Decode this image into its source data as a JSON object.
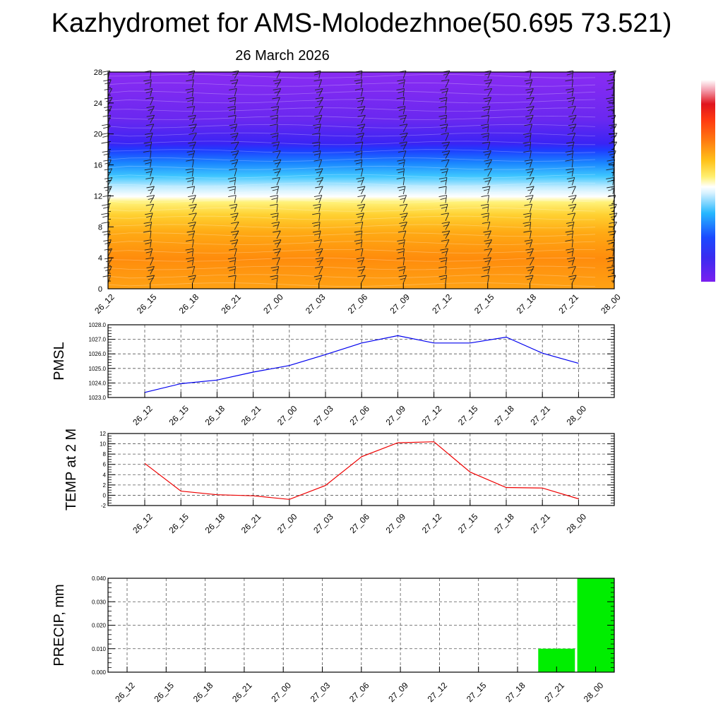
{
  "header": {
    "title": "Kazhydromet for AMS-Molodezhnoe(50.695 73.521)",
    "date": "26 March 2026"
  },
  "chart_data": [
    {
      "type": "heatmap",
      "name": "cross-section",
      "title": "",
      "categories": [
        "26_12",
        "26_15",
        "26_18",
        "26_21",
        "27_00",
        "27_03",
        "27_06",
        "27_09",
        "27_12",
        "27_15",
        "27_18",
        "27_21",
        "28_00"
      ],
      "y_ticks": [
        0,
        4,
        8,
        12,
        16,
        20,
        24,
        28
      ],
      "ylim": [
        0,
        28
      ],
      "colorbar_stops": [
        "#7a1ff0",
        "#4a2ff0",
        "#1a4aff",
        "#25b8ff",
        "#c8ecff",
        "#ffffff",
        "#fff070",
        "#ffc21a",
        "#ff8a10",
        "#ff5a10",
        "#e0141e",
        "#f0a0b0",
        "#ffffff"
      ]
    },
    {
      "type": "line",
      "name": "pmsl",
      "ylabel": "PMSL",
      "categories": [
        "26_12",
        "26_15",
        "26_18",
        "26_21",
        "27_00",
        "27_03",
        "27_06",
        "27_09",
        "27_12",
        "27_15",
        "27_18",
        "27_21",
        "28_00"
      ],
      "values": [
        1023.35,
        1023.95,
        1024.2,
        1024.75,
        1025.2,
        1025.95,
        1026.75,
        1027.25,
        1026.75,
        1026.75,
        1027.15,
        1026.05,
        1025.35
      ],
      "ylim": [
        1023,
        1028
      ],
      "y_ticks": [
        "1023.0",
        "1024.0",
        "1025.0",
        "1026.0",
        "1027.0",
        "1028.0"
      ],
      "color": "#0000ee"
    },
    {
      "type": "line",
      "name": "temp",
      "ylabel": "TEMP at 2 M",
      "categories": [
        "26_12",
        "26_15",
        "26_18",
        "26_21",
        "27_00",
        "27_03",
        "27_06",
        "27_09",
        "27_12",
        "27_15",
        "27_18",
        "27_21",
        "28_00"
      ],
      "values": [
        6.2,
        0.8,
        0.1,
        -0.1,
        -0.8,
        1.9,
        7.5,
        10.2,
        10.4,
        4.5,
        1.5,
        1.4,
        -0.7
      ],
      "ylim": [
        -2,
        12
      ],
      "y_ticks": [
        "-2",
        "0",
        "2",
        "4",
        "6",
        "8",
        "10",
        "12"
      ],
      "color": "#ee0000"
    },
    {
      "type": "bar",
      "name": "precip",
      "ylabel": "PRECIP, mm",
      "categories": [
        "26_12",
        "26_15",
        "26_18",
        "26_21",
        "27_00",
        "27_03",
        "27_06",
        "27_09",
        "27_12",
        "27_15",
        "27_18",
        "27_21",
        "28_00"
      ],
      "values": [
        0,
        0,
        0,
        0,
        0,
        0,
        0,
        0,
        0,
        0,
        0,
        0.01,
        0.04
      ],
      "ylim": [
        0,
        0.04
      ],
      "y_ticks": [
        "0.000",
        "0.010",
        "0.020",
        "0.030",
        "0.040"
      ],
      "color": "#00ee00"
    }
  ]
}
